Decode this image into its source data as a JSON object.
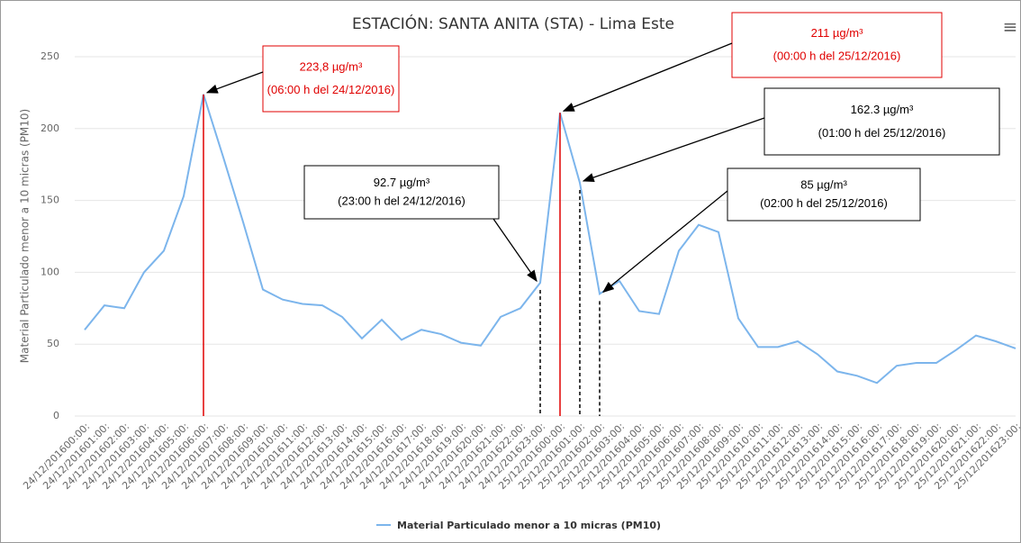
{
  "chart_data": {
    "type": "line",
    "title": "ESTACIÓN: SANTA ANITA (STA) - Lima Este",
    "y_label": "Material Particulado menor a 10 micras (PM10)",
    "categories": [
      "24/12/201600:00:",
      "24/12/201601:00:",
      "24/12/201602:00:",
      "24/12/201603:00:",
      "24/12/201604:00:",
      "24/12/201605:00:",
      "24/12/201606:00:",
      "24/12/201607:00:",
      "24/12/201608:00:",
      "24/12/201609:00:",
      "24/12/201610:00:",
      "24/12/201611:00:",
      "24/12/201612:00:",
      "24/12/201613:00:",
      "24/12/201614:00:",
      "24/12/201615:00:",
      "24/12/201616:00:",
      "24/12/201617:00:",
      "24/12/201618:00:",
      "24/12/201619:00:",
      "24/12/201620:00:",
      "24/12/201621:00:",
      "24/12/201622:00:",
      "24/12/201623:00:",
      "25/12/201600:00:",
      "25/12/201601:00:",
      "25/12/201602:00:",
      "25/12/201603:00:",
      "25/12/201604:00:",
      "25/12/201605:00:",
      "25/12/201606:00:",
      "25/12/201607:00:",
      "25/12/201608:00:",
      "25/12/201609:00:",
      "25/12/201610:00:",
      "25/12/201611:00:",
      "25/12/201612:00:",
      "25/12/201613:00:",
      "25/12/201614:00:",
      "25/12/201615:00:",
      "25/12/201616:00:",
      "25/12/201617:00:",
      "25/12/201618:00:",
      "25/12/201619:00:",
      "25/12/201620:00:",
      "25/12/201621:00:",
      "25/12/201622:00:",
      "25/12/201623:00:"
    ],
    "series": [
      {
        "name": "Material Particulado menor a 10 micras (PM10)",
        "color": "#7cb5ec",
        "values": [
          60,
          77,
          75,
          100,
          115,
          153,
          223.8,
          180,
          135,
          88,
          81,
          78,
          77,
          69,
          54,
          67,
          53,
          60,
          57,
          51,
          49,
          69,
          75,
          92.7,
          211,
          162.3,
          85,
          94,
          73,
          71,
          115,
          133,
          128,
          68,
          48,
          48,
          52,
          43,
          31,
          28,
          23,
          35,
          37,
          37,
          46,
          56,
          52,
          47
        ]
      }
    ],
    "ylim": [
      0,
      250
    ],
    "yticks": [
      0,
      50,
      100,
      150,
      200,
      250
    ],
    "grid": true,
    "legend": "bottom",
    "annotations": [
      {
        "label": "223,8 µg/m³",
        "time": "(06:00 h del 24/12/2016)",
        "x": "24/12/201606:00:",
        "color": "#e00000",
        "dashed": false
      },
      {
        "label": "211 µg/m³",
        "time": "(00:00 h del 25/12/2016)",
        "x": "25/12/201600:00:",
        "color": "#e00000",
        "dashed": false
      },
      {
        "label": "162.3 µg/m³",
        "time": "(01:00 h del 25/12/2016)",
        "x": "25/12/201601:00:",
        "color": "#000000",
        "dashed": true
      },
      {
        "label": "92.7 µg/m³",
        "time": "(23:00 h del 24/12/2016)",
        "x": "24/12/201623:00:",
        "color": "#000000",
        "dashed": true
      },
      {
        "label": "85 µg/m³",
        "time": "(02:00 h del 25/12/2016)",
        "x": "25/12/201602:00:",
        "color": "#000000",
        "dashed": true
      }
    ]
  }
}
